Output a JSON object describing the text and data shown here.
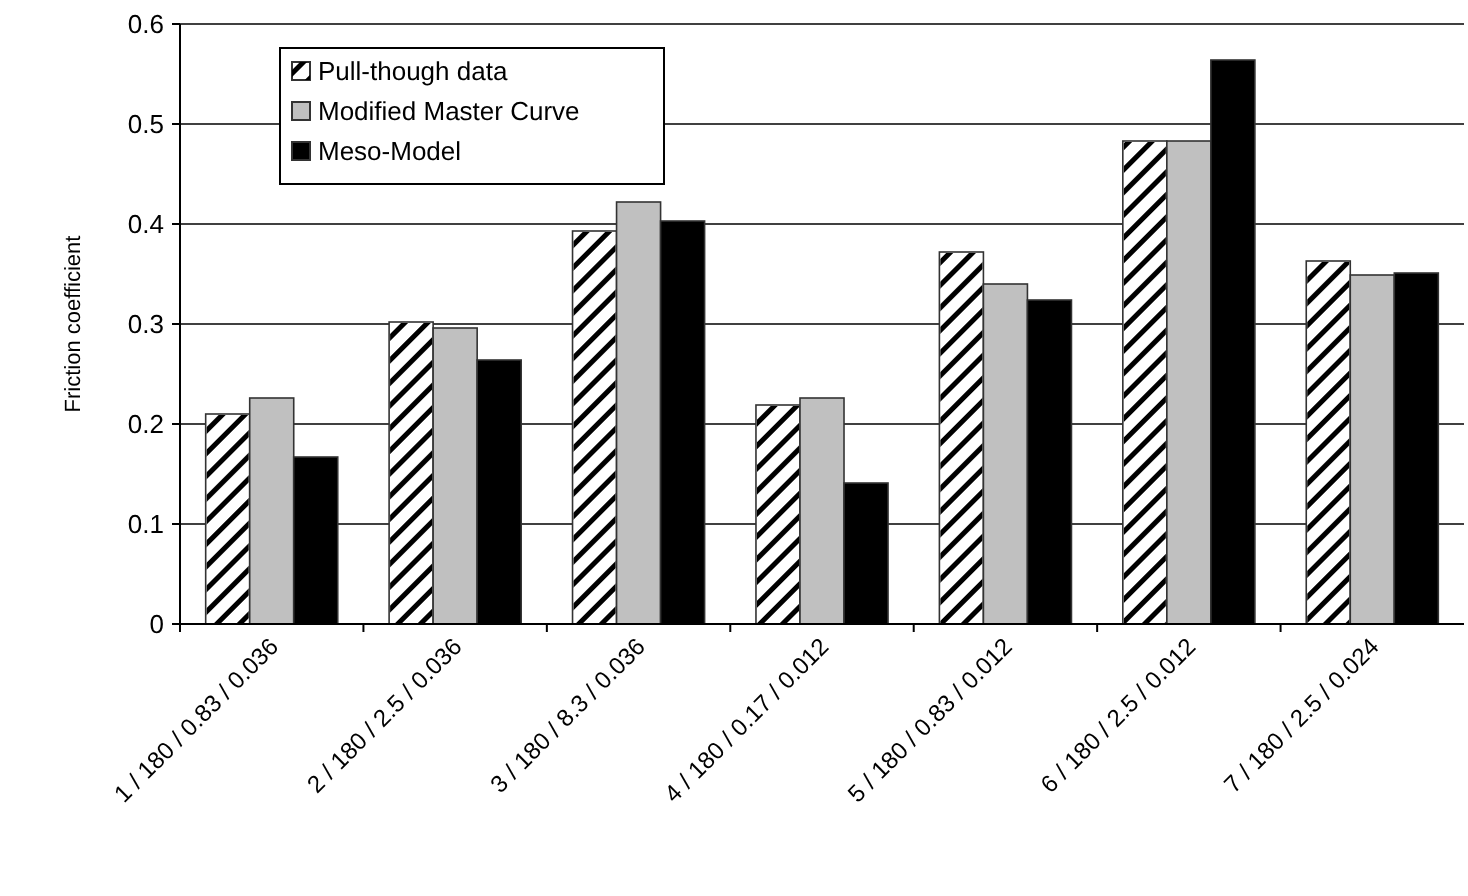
{
  "chart_data": {
    "type": "bar",
    "ylabel": "Friction coefficient",
    "categories": [
      "1 / 180 / 0.83 / 0.036",
      "2 / 180 / 2.5 / 0.036",
      "3 / 180 / 8.3 / 0.036",
      "4 / 180 / 0.17 / 0.012",
      "5 / 180 / 0.83 / 0.012",
      "6 / 180 / 2.5 / 0.012",
      "7 / 180 / 2.5 / 0.024"
    ],
    "series": [
      {
        "name": "Pull-though data",
        "color": "#ffffff",
        "values": [
          0.21,
          0.302,
          0.393,
          0.219,
          0.372,
          0.483,
          0.363
        ]
      },
      {
        "name": "Modified Master Curve",
        "color": "#c0c0c0",
        "values": [
          0.226,
          0.296,
          0.422,
          0.226,
          0.34,
          0.483,
          0.349
        ]
      },
      {
        "name": "Meso-Model",
        "color": "#000000",
        "values": [
          0.167,
          0.264,
          0.403,
          0.141,
          0.324,
          0.564,
          0.351
        ]
      }
    ],
    "ylim": [
      0,
      0.6
    ],
    "yticks": [
      0,
      0.1,
      0.2,
      0.3,
      0.4,
      0.5,
      0.6
    ],
    "grid": "y",
    "legend": "top left"
  }
}
